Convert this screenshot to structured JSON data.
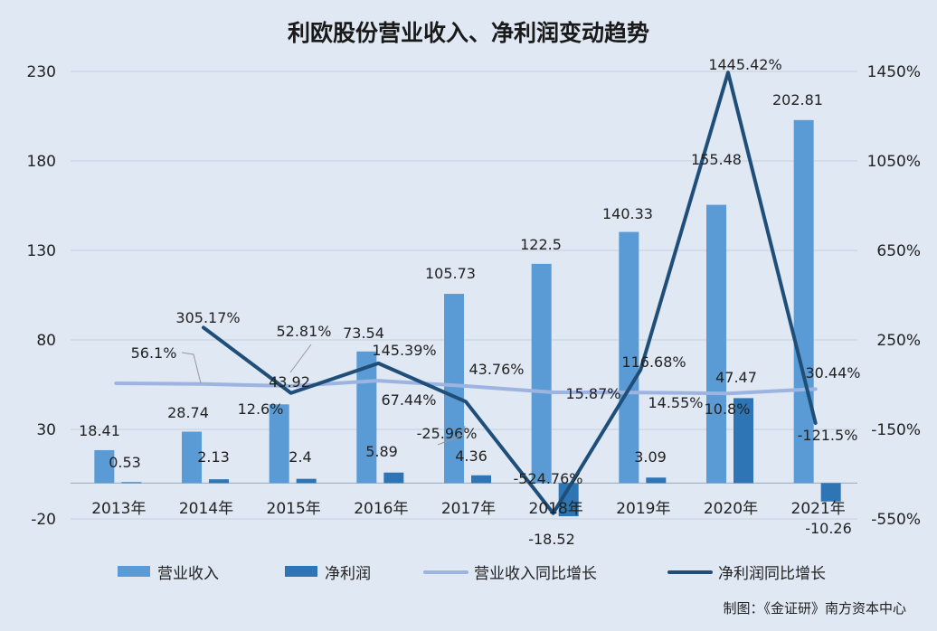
{
  "chart_data": {
    "type": "bar",
    "title": "利欧股份营业收入、净利润变动趋势",
    "categories": [
      "2013年",
      "2014年",
      "2015年",
      "2016年",
      "2017年",
      "2018年",
      "2019年",
      "2020年",
      "2021年"
    ],
    "left_axis": {
      "ylim": [
        -20,
        230
      ],
      "ticks": [
        "230",
        "180",
        "130",
        "80",
        "30",
        "-20"
      ]
    },
    "right_axis": {
      "ylim": [
        -550,
        1450
      ],
      "ticks": [
        "1450%",
        "1050%",
        "650%",
        "250%",
        "-150%",
        "-550%"
      ]
    },
    "series": [
      {
        "name": "营业收入",
        "kind": "bar",
        "axis": "left",
        "values": [
          18.41,
          28.74,
          44.0,
          73.54,
          105.73,
          122.5,
          140.33,
          155.48,
          202.81
        ],
        "labels": [
          "18.41",
          "28.74",
          "",
          "73.54",
          "105.73",
          "122.5",
          "140.33",
          "155.48",
          "202.81"
        ]
      },
      {
        "name": "净利润",
        "kind": "bar",
        "axis": "left",
        "values": [
          0.53,
          2.13,
          2.4,
          5.89,
          4.36,
          -18.52,
          3.09,
          47.47,
          -10.26
        ],
        "labels": [
          "0.53",
          "2.13",
          "2.4",
          "5.89",
          "4.36",
          "-18.52",
          "3.09",
          "47.47",
          "-10.26"
        ]
      },
      {
        "name": "营业收入同比增长",
        "kind": "line",
        "axis": "right",
        "values": [
          56.1,
          52.81,
          43.92,
          67.44,
          43.76,
          15.87,
          14.55,
          10.8,
          30.44
        ],
        "labels": [
          "56.1%",
          "52.81%",
          "43.92",
          "67.44%",
          "43.76%",
          "15.87%",
          "14.55%",
          "10.8%",
          "30.44%"
        ]
      },
      {
        "name": "净利润同比增长",
        "kind": "line",
        "axis": "right",
        "values": [
          null,
          305.17,
          12.6,
          145.39,
          -25.96,
          -524.76,
          116.68,
          1445.42,
          -121.5
        ],
        "labels": [
          "",
          "305.17%",
          "12.6%",
          "145.39%",
          "-25.96%",
          "-524.76%",
          "116.68%",
          "1445.42%",
          "-121.5%"
        ]
      }
    ],
    "colors": {
      "background": "#dfe8f3",
      "revenue_bar": "#5b9bd5",
      "profit_bar": "#2e75b6",
      "revenue_growth_line": "#9db3e0",
      "profit_growth_line": "#1f4e79",
      "grid": "#c5d0de"
    },
    "grid": true,
    "legend_position": "bottom"
  },
  "credit": "制图：《金证研》南方资本中心"
}
